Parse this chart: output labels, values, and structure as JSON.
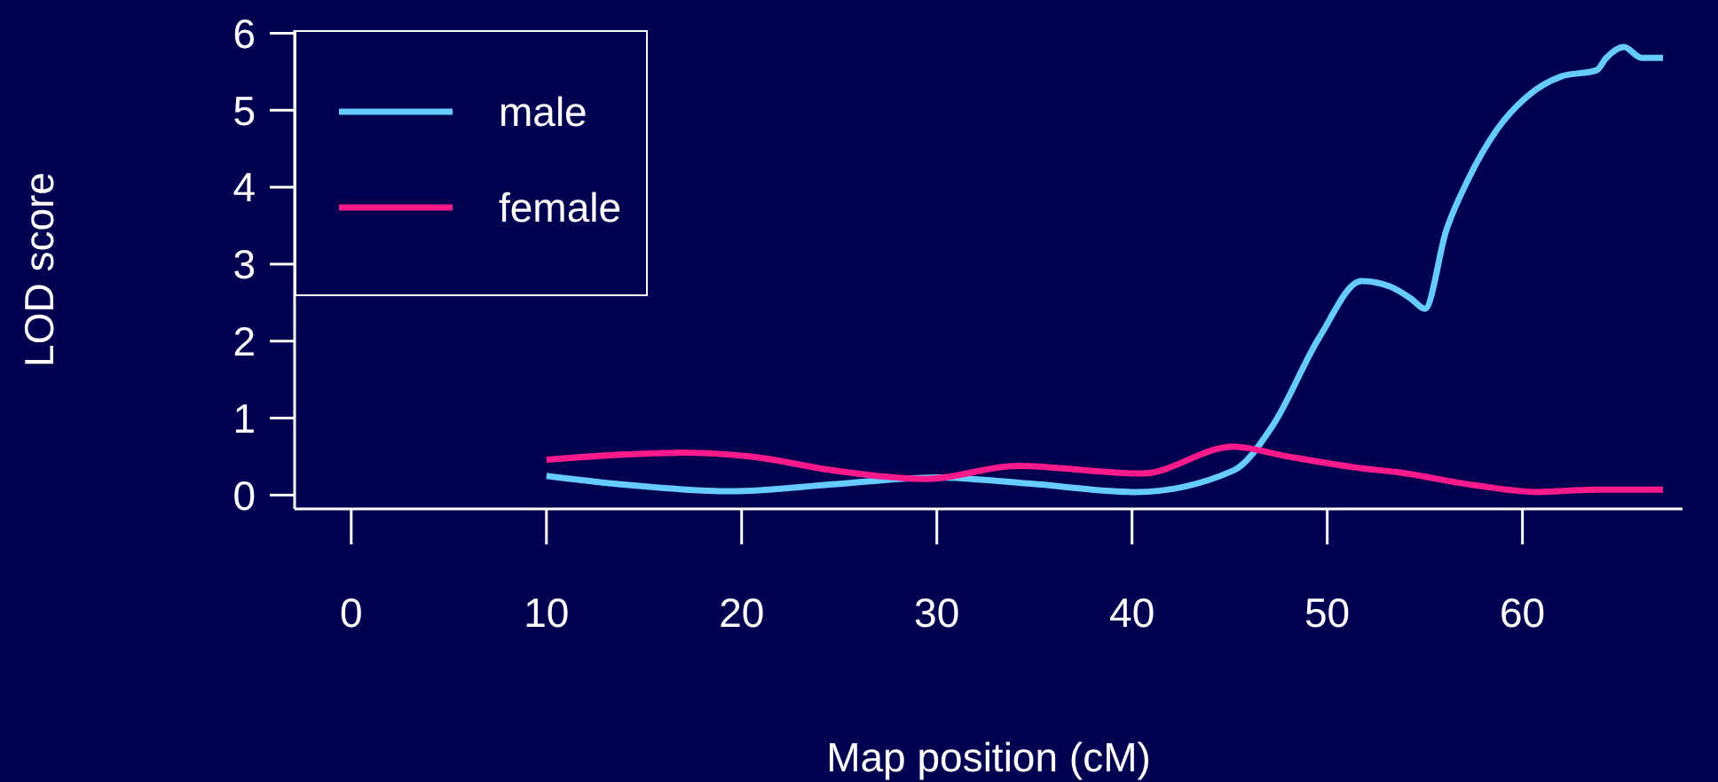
{
  "chart_data": {
    "type": "line",
    "xlabel": "Map position (cM)",
    "ylabel": "LOD score",
    "xlim": [
      -2.9,
      68.2
    ],
    "ylim": [
      -0.18,
      6.04
    ],
    "xticks": [
      0,
      10,
      20,
      30,
      40,
      50,
      60
    ],
    "yticks": [
      0,
      1,
      2,
      3,
      4,
      5,
      6
    ],
    "legend": "top left",
    "marker": "none",
    "line_style": "solid",
    "series": [
      {
        "name": "male",
        "color": "#66ccff",
        "x": [
          10,
          13.8,
          19.5,
          24.7,
          30,
          34.7,
          40.2,
          45.2,
          47.2,
          49.6,
          51.75,
          53.2,
          54.3,
          55.0,
          56.1,
          57.2,
          58.7,
          60.2,
          62.0,
          63.8,
          64.3,
          65.2,
          66.1,
          67.2
        ],
        "values": [
          0.25,
          0.14,
          0.05,
          0.14,
          0.23,
          0.15,
          0.04,
          0.32,
          0.9,
          2.05,
          2.78,
          2.71,
          2.55,
          2.42,
          3.44,
          4.09,
          4.75,
          5.17,
          5.44,
          5.52,
          5.68,
          5.82,
          5.68,
          5.68
        ]
      },
      {
        "name": "female",
        "color": "#ff1a8c",
        "x": [
          10,
          16.8,
          20.5,
          24.7,
          29.5,
          34.1,
          40.5,
          45.2,
          47.8,
          51.7,
          53.5,
          57.5,
          60.8,
          63.8,
          67.2
        ],
        "values": [
          0.46,
          0.55,
          0.5,
          0.32,
          0.21,
          0.38,
          0.28,
          0.63,
          0.51,
          0.35,
          0.3,
          0.13,
          0.04,
          0.07,
          0.07
        ]
      }
    ]
  }
}
